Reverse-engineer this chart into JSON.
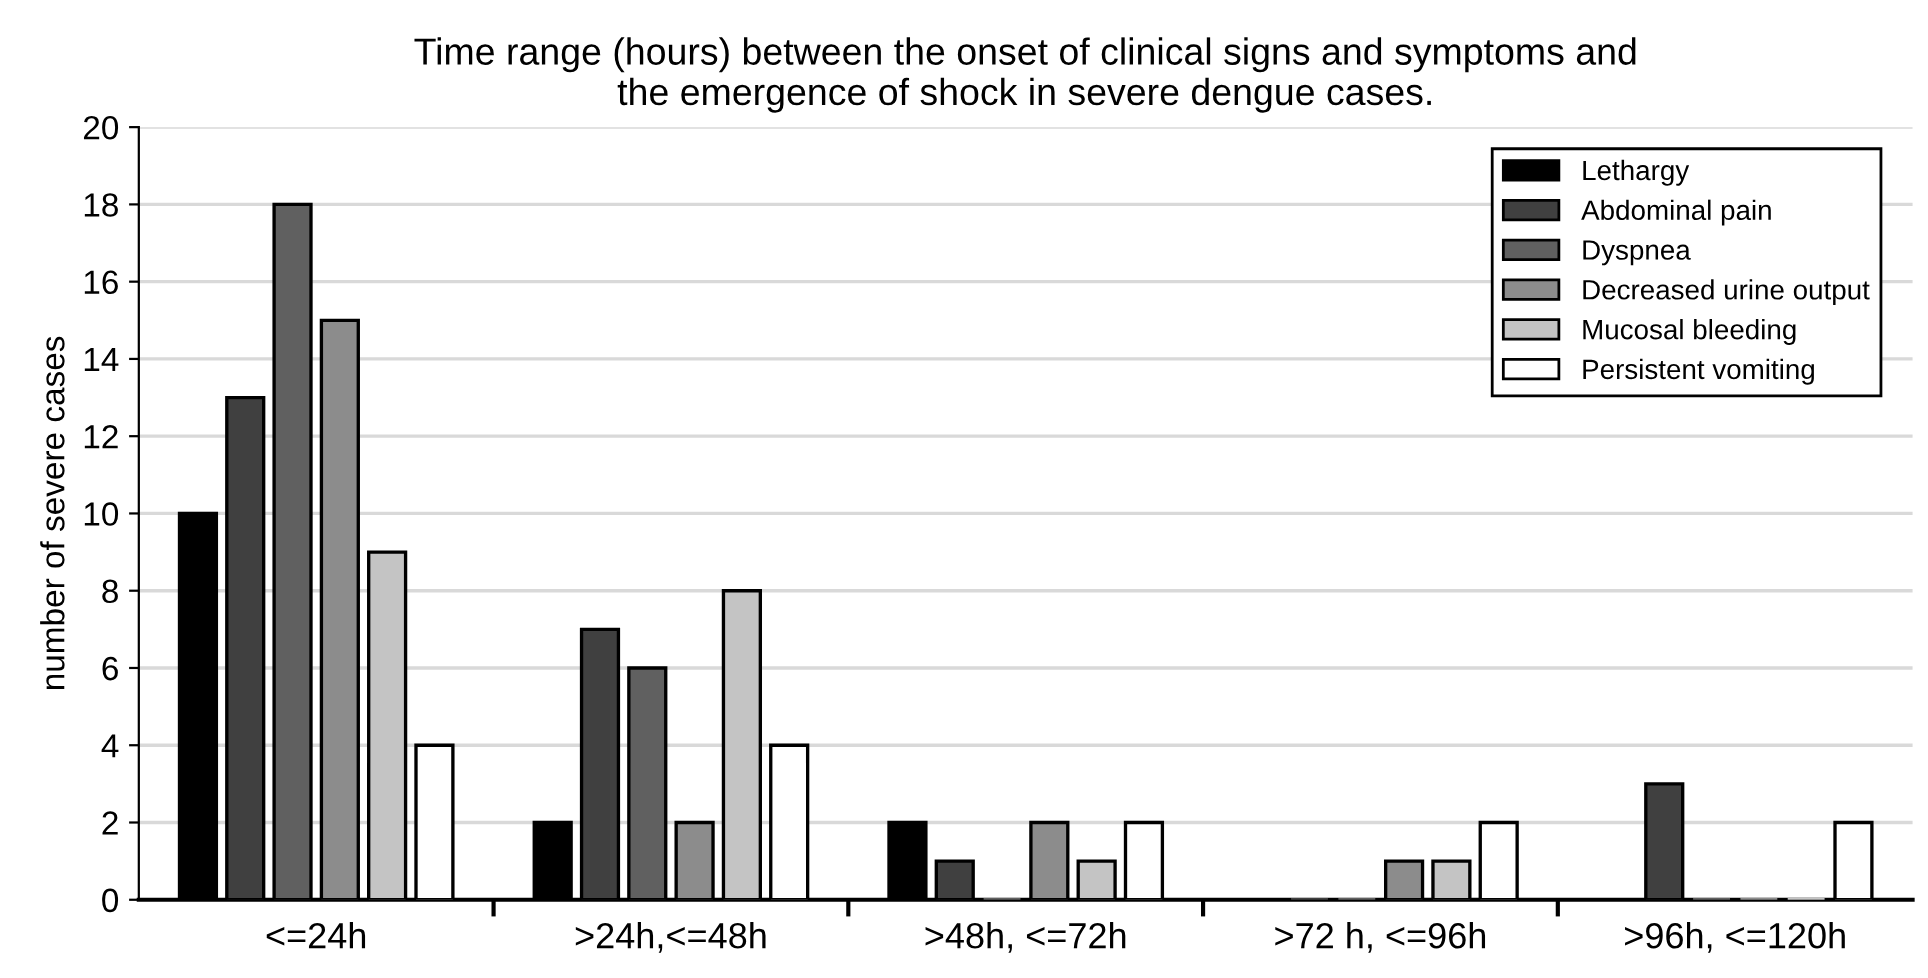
{
  "chart_data": {
    "type": "bar",
    "title": "Time range (hours) between the onset of clinical signs and symptoms and\nthe emergence of shock in severe dengue cases.",
    "ylabel": "number of severe cases",
    "categories": [
      "<=24h",
      ">24h,<=48h",
      ">48h, <=72h",
      ">72 h, <=96h",
      ">96h, <=120h"
    ],
    "series": [
      {
        "name": "Lethargy",
        "color": "#000000",
        "values": [
          10,
          2,
          2,
          0,
          0
        ]
      },
      {
        "name": "Abdominal pain",
        "color": "#404040",
        "values": [
          13,
          7,
          1,
          0,
          3
        ]
      },
      {
        "name": "Dyspnea",
        "color": "#606060",
        "values": [
          18,
          6,
          0,
          0,
          0
        ]
      },
      {
        "name": "Decreased urine output",
        "color": "#8c8c8c",
        "values": [
          15,
          2,
          2,
          1,
          0
        ]
      },
      {
        "name": "Mucosal bleeding",
        "color": "#c4c4c4",
        "values": [
          9,
          8,
          1,
          1,
          0
        ]
      },
      {
        "name": "Persistent vomiting",
        "color": "#ffffff",
        "values": [
          4,
          4,
          2,
          2,
          2
        ]
      }
    ],
    "ylim": [
      0,
      20
    ],
    "yticks": [
      0,
      2,
      4,
      6,
      8,
      10,
      12,
      14,
      16,
      18,
      20
    ],
    "grid": "y",
    "legend": "top right"
  }
}
